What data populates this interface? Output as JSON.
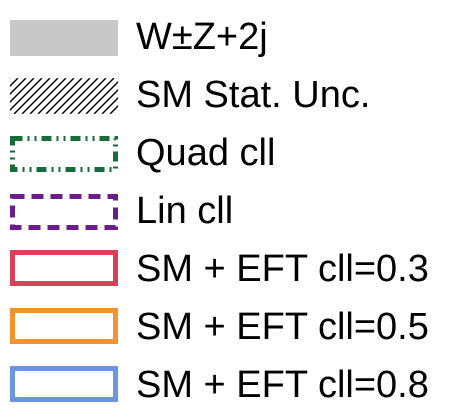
{
  "chart_data": {
    "type": "legend",
    "legend": {
      "entries": [
        {
          "label": "W±Z+2j",
          "style": "filled",
          "fill": "#c8c8c8",
          "stroke": "none",
          "dash": "solid",
          "icon": "filled-gray-box"
        },
        {
          "label": "SM Stat. Unc.",
          "style": "hatched",
          "fill": "none",
          "stroke": "#000000",
          "dash": "solid",
          "icon": "hatched-box"
        },
        {
          "label": "Quad cll",
          "style": "outline",
          "fill": "none",
          "stroke": "#1a6b3c",
          "dash": "dash-dot-dot",
          "icon": "dash-dot-outline-box"
        },
        {
          "label": "Lin cll",
          "style": "outline",
          "fill": "none",
          "stroke": "#6b1d8c",
          "dash": "dashed",
          "icon": "dashed-outline-box"
        },
        {
          "label": "SM + EFT cll=0.3",
          "style": "outline",
          "fill": "none",
          "stroke": "#d8405c",
          "dash": "solid",
          "icon": "solid-outline-box"
        },
        {
          "label": "SM + EFT cll=0.5",
          "style": "outline",
          "fill": "none",
          "stroke": "#f5922f",
          "dash": "solid",
          "icon": "solid-outline-box"
        },
        {
          "label": "SM + EFT cll=0.8",
          "style": "outline",
          "fill": "none",
          "stroke": "#6b96e0",
          "dash": "solid",
          "icon": "solid-outline-box"
        }
      ]
    }
  }
}
